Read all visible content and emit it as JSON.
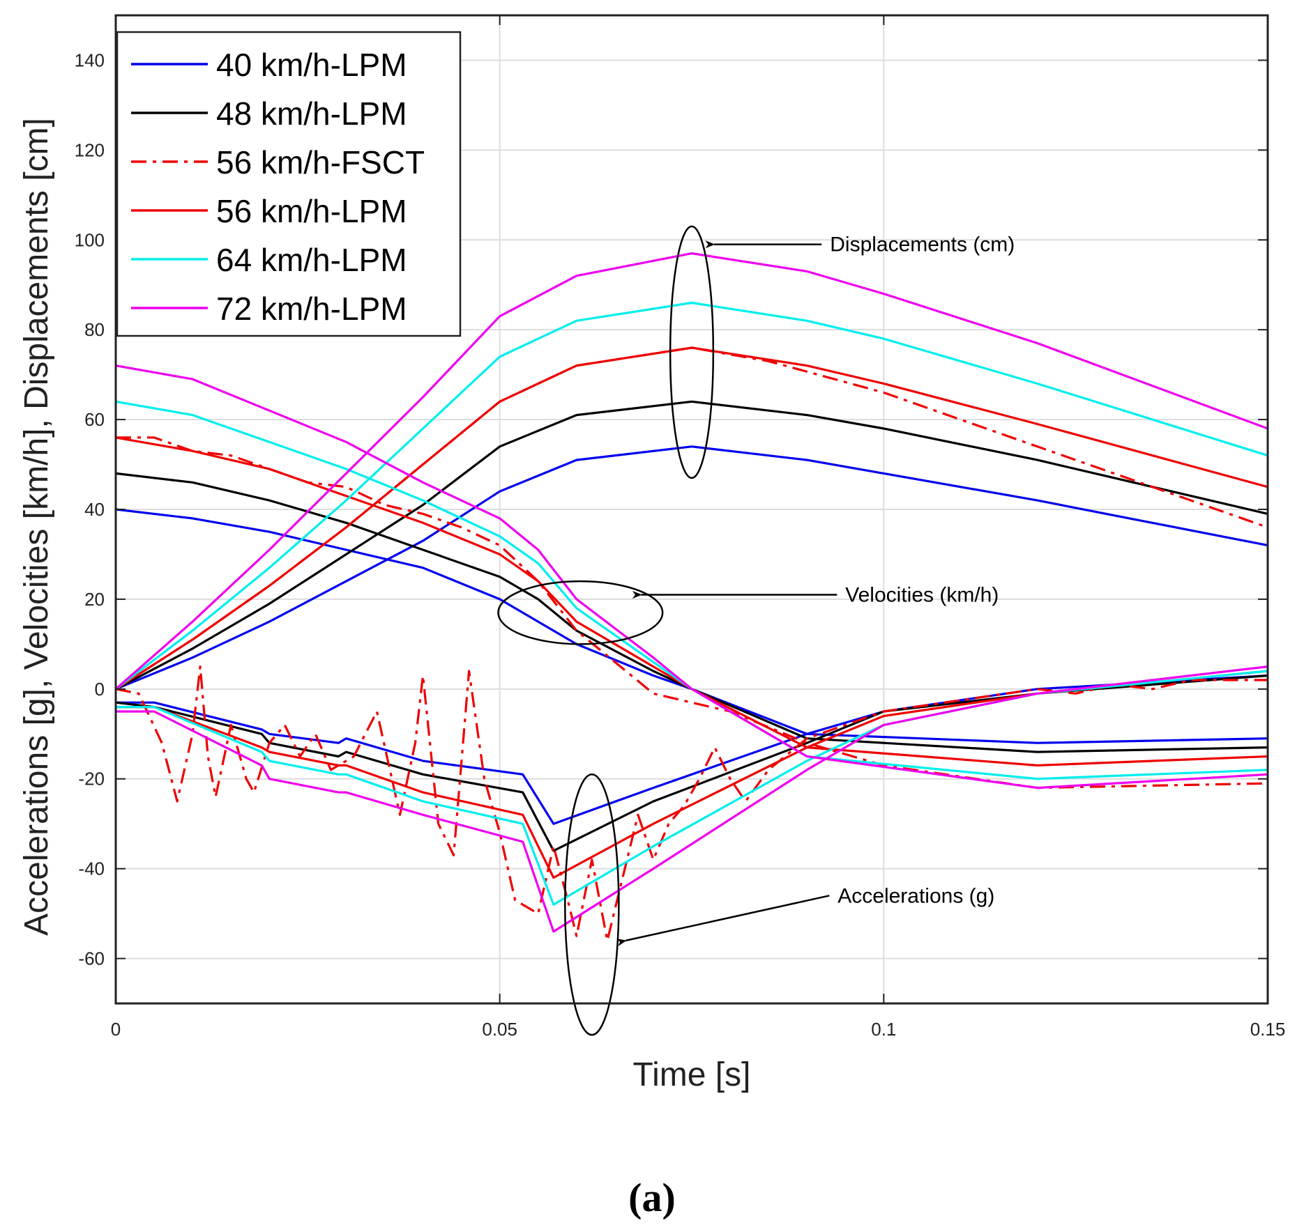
{
  "chart_data": {
    "type": "line",
    "title": "",
    "xlabel": "Time [s]",
    "ylabel": "Accelerations [g], Velocities [km/h], Displacements [cm]",
    "xlim": [
      0,
      0.15
    ],
    "ylim": [
      -70,
      150
    ],
    "xticks": [
      0,
      0.05,
      0.1,
      0.15
    ],
    "xtick_labels": [
      "0",
      "0.05",
      "0.1",
      "0.15"
    ],
    "yticks": [
      -60,
      -40,
      -20,
      0,
      20,
      40,
      60,
      80,
      100,
      120,
      140
    ],
    "ytick_labels": [
      "-60",
      "-40",
      "-20",
      "0",
      "20",
      "40",
      "60",
      "80",
      "100",
      "120",
      "140"
    ],
    "grid": true,
    "legend_position": "top-left",
    "caption": "(a)",
    "series": [
      {
        "name": "40 km/h-LPM",
        "color": "#0000ee",
        "style": "solid",
        "displacement": [
          [
            0,
            0
          ],
          [
            0.01,
            7
          ],
          [
            0.02,
            15
          ],
          [
            0.03,
            24
          ],
          [
            0.04,
            33
          ],
          [
            0.05,
            44
          ],
          [
            0.06,
            51
          ],
          [
            0.075,
            54
          ],
          [
            0.09,
            51
          ],
          [
            0.1,
            48
          ],
          [
            0.12,
            42
          ],
          [
            0.15,
            32
          ]
        ],
        "velocity": [
          [
            0,
            40
          ],
          [
            0.01,
            38
          ],
          [
            0.02,
            35
          ],
          [
            0.03,
            31
          ],
          [
            0.04,
            27
          ],
          [
            0.05,
            20
          ],
          [
            0.055,
            15
          ],
          [
            0.06,
            10
          ],
          [
            0.07,
            3
          ],
          [
            0.075,
            0
          ],
          [
            0.09,
            -10
          ],
          [
            0.12,
            -12
          ],
          [
            0.15,
            -11
          ]
        ],
        "acceleration": [
          [
            0,
            -3
          ],
          [
            0.005,
            -3
          ],
          [
            0.019,
            -9
          ],
          [
            0.02,
            -10
          ],
          [
            0.029,
            -12
          ],
          [
            0.03,
            -11
          ],
          [
            0.04,
            -16
          ],
          [
            0.053,
            -19
          ],
          [
            0.057,
            -30
          ],
          [
            0.07,
            -22
          ],
          [
            0.09,
            -10
          ],
          [
            0.1,
            -5
          ],
          [
            0.12,
            0
          ],
          [
            0.15,
            3
          ]
        ]
      },
      {
        "name": "48 km/h-LPM",
        "color": "#000000",
        "style": "solid",
        "displacement": [
          [
            0,
            0
          ],
          [
            0.01,
            9
          ],
          [
            0.02,
            19
          ],
          [
            0.03,
            30
          ],
          [
            0.04,
            41
          ],
          [
            0.05,
            54
          ],
          [
            0.06,
            61
          ],
          [
            0.075,
            64
          ],
          [
            0.09,
            61
          ],
          [
            0.1,
            58
          ],
          [
            0.12,
            51
          ],
          [
            0.15,
            39
          ]
        ],
        "velocity": [
          [
            0,
            48
          ],
          [
            0.01,
            46
          ],
          [
            0.02,
            42
          ],
          [
            0.03,
            37
          ],
          [
            0.04,
            31
          ],
          [
            0.05,
            25
          ],
          [
            0.055,
            20
          ],
          [
            0.06,
            13
          ],
          [
            0.07,
            4
          ],
          [
            0.075,
            0
          ],
          [
            0.09,
            -11
          ],
          [
            0.12,
            -14
          ],
          [
            0.15,
            -13
          ]
        ],
        "acceleration": [
          [
            0,
            -3
          ],
          [
            0.005,
            -4
          ],
          [
            0.019,
            -10
          ],
          [
            0.02,
            -12
          ],
          [
            0.029,
            -15
          ],
          [
            0.03,
            -14
          ],
          [
            0.04,
            -19
          ],
          [
            0.053,
            -23
          ],
          [
            0.057,
            -36
          ],
          [
            0.07,
            -25
          ],
          [
            0.09,
            -12
          ],
          [
            0.1,
            -5
          ],
          [
            0.12,
            -1
          ],
          [
            0.15,
            3
          ]
        ]
      },
      {
        "name": "56 km/h-FSCT",
        "color": "#ee0000",
        "style": "dashdot",
        "displacement": [
          [
            0,
            0
          ],
          [
            0.01,
            11
          ],
          [
            0.02,
            23
          ],
          [
            0.03,
            36
          ],
          [
            0.04,
            50
          ],
          [
            0.05,
            64
          ],
          [
            0.06,
            72
          ],
          [
            0.075,
            76
          ],
          [
            0.085,
            73
          ],
          [
            0.1,
            66
          ],
          [
            0.12,
            54
          ],
          [
            0.15,
            36
          ]
        ],
        "velocity": [
          [
            0,
            56
          ],
          [
            0.005,
            56
          ],
          [
            0.01,
            53
          ],
          [
            0.015,
            52
          ],
          [
            0.02,
            49
          ],
          [
            0.025,
            46
          ],
          [
            0.03,
            45
          ],
          [
            0.035,
            41
          ],
          [
            0.04,
            39
          ],
          [
            0.045,
            36
          ],
          [
            0.05,
            32
          ],
          [
            0.055,
            24
          ],
          [
            0.06,
            13
          ],
          [
            0.065,
            6
          ],
          [
            0.07,
            -1
          ],
          [
            0.075,
            -3
          ],
          [
            0.08,
            -5
          ],
          [
            0.09,
            -12
          ],
          [
            0.1,
            -17
          ],
          [
            0.12,
            -22
          ],
          [
            0.15,
            -21
          ]
        ],
        "acceleration": [
          [
            0,
            0
          ],
          [
            0.003,
            -1
          ],
          [
            0.006,
            -12
          ],
          [
            0.008,
            -25
          ],
          [
            0.01,
            -10
          ],
          [
            0.011,
            5
          ],
          [
            0.012,
            -15
          ],
          [
            0.013,
            -24
          ],
          [
            0.015,
            -8
          ],
          [
            0.017,
            -20
          ],
          [
            0.018,
            -23
          ],
          [
            0.02,
            -12
          ],
          [
            0.022,
            -8
          ],
          [
            0.024,
            -15
          ],
          [
            0.026,
            -10
          ],
          [
            0.028,
            -18
          ],
          [
            0.031,
            -15
          ],
          [
            0.034,
            -5
          ],
          [
            0.037,
            -28
          ],
          [
            0.039,
            -12
          ],
          [
            0.04,
            3
          ],
          [
            0.042,
            -30
          ],
          [
            0.044,
            -37
          ],
          [
            0.046,
            4
          ],
          [
            0.048,
            -20
          ],
          [
            0.05,
            -32
          ],
          [
            0.052,
            -47
          ],
          [
            0.055,
            -50
          ],
          [
            0.057,
            -35
          ],
          [
            0.059,
            -48
          ],
          [
            0.06,
            -55
          ],
          [
            0.062,
            -38
          ],
          [
            0.064,
            -56
          ],
          [
            0.066,
            -42
          ],
          [
            0.068,
            -28
          ],
          [
            0.07,
            -38
          ],
          [
            0.072,
            -30
          ],
          [
            0.074,
            -26
          ],
          [
            0.076,
            -20
          ],
          [
            0.078,
            -13
          ],
          [
            0.08,
            -20
          ],
          [
            0.082,
            -25
          ],
          [
            0.085,
            -18
          ],
          [
            0.09,
            -11
          ],
          [
            0.1,
            -5
          ],
          [
            0.12,
            0
          ],
          [
            0.125,
            -1
          ],
          [
            0.13,
            1
          ],
          [
            0.135,
            0
          ],
          [
            0.14,
            2
          ],
          [
            0.15,
            2
          ]
        ]
      },
      {
        "name": "56 km/h-LPM",
        "color": "#ee0000",
        "style": "solid",
        "displacement": [
          [
            0,
            0
          ],
          [
            0.01,
            11
          ],
          [
            0.02,
            23
          ],
          [
            0.03,
            36
          ],
          [
            0.04,
            50
          ],
          [
            0.05,
            64
          ],
          [
            0.06,
            72
          ],
          [
            0.075,
            76
          ],
          [
            0.09,
            72
          ],
          [
            0.1,
            68
          ],
          [
            0.12,
            59
          ],
          [
            0.15,
            45
          ]
        ],
        "velocity": [
          [
            0,
            56
          ],
          [
            0.01,
            53
          ],
          [
            0.02,
            49
          ],
          [
            0.03,
            43
          ],
          [
            0.04,
            37
          ],
          [
            0.05,
            30
          ],
          [
            0.055,
            24
          ],
          [
            0.06,
            15
          ],
          [
            0.07,
            5
          ],
          [
            0.075,
            0
          ],
          [
            0.09,
            -13
          ],
          [
            0.12,
            -17
          ],
          [
            0.15,
            -15
          ]
        ],
        "acceleration": [
          [
            0,
            -4
          ],
          [
            0.005,
            -4
          ],
          [
            0.019,
            -13
          ],
          [
            0.02,
            -14
          ],
          [
            0.029,
            -17
          ],
          [
            0.03,
            -17
          ],
          [
            0.04,
            -23
          ],
          [
            0.053,
            -28
          ],
          [
            0.057,
            -42
          ],
          [
            0.07,
            -30
          ],
          [
            0.09,
            -13
          ],
          [
            0.1,
            -6
          ],
          [
            0.12,
            -1
          ],
          [
            0.15,
            4
          ]
        ]
      },
      {
        "name": "64 km/h-LPM",
        "color": "#00eeee",
        "style": "solid",
        "displacement": [
          [
            0,
            0
          ],
          [
            0.01,
            13
          ],
          [
            0.02,
            27
          ],
          [
            0.03,
            42
          ],
          [
            0.04,
            58
          ],
          [
            0.05,
            74
          ],
          [
            0.06,
            82
          ],
          [
            0.075,
            86
          ],
          [
            0.09,
            82
          ],
          [
            0.1,
            78
          ],
          [
            0.12,
            68
          ],
          [
            0.15,
            52
          ]
        ],
        "velocity": [
          [
            0,
            64
          ],
          [
            0.01,
            61
          ],
          [
            0.02,
            55
          ],
          [
            0.03,
            49
          ],
          [
            0.04,
            42
          ],
          [
            0.05,
            34
          ],
          [
            0.055,
            28
          ],
          [
            0.06,
            18
          ],
          [
            0.07,
            6
          ],
          [
            0.075,
            0
          ],
          [
            0.09,
            -15
          ],
          [
            0.12,
            -20
          ],
          [
            0.15,
            -18
          ]
        ],
        "acceleration": [
          [
            0,
            -4
          ],
          [
            0.005,
            -4
          ],
          [
            0.019,
            -14
          ],
          [
            0.02,
            -16
          ],
          [
            0.029,
            -19
          ],
          [
            0.03,
            -19
          ],
          [
            0.04,
            -25
          ],
          [
            0.053,
            -30
          ],
          [
            0.057,
            -48
          ],
          [
            0.07,
            -35
          ],
          [
            0.09,
            -16
          ],
          [
            0.1,
            -8
          ],
          [
            0.12,
            -1
          ],
          [
            0.15,
            4
          ]
        ]
      },
      {
        "name": "72 km/h-LPM",
        "color": "#ee00ee",
        "style": "solid",
        "displacement": [
          [
            0,
            0
          ],
          [
            0.01,
            15
          ],
          [
            0.02,
            31
          ],
          [
            0.03,
            48
          ],
          [
            0.04,
            65
          ],
          [
            0.05,
            83
          ],
          [
            0.06,
            92
          ],
          [
            0.075,
            97
          ],
          [
            0.09,
            93
          ],
          [
            0.1,
            88
          ],
          [
            0.12,
            77
          ],
          [
            0.15,
            58
          ]
        ],
        "velocity": [
          [
            0,
            72
          ],
          [
            0.01,
            69
          ],
          [
            0.02,
            62
          ],
          [
            0.03,
            55
          ],
          [
            0.04,
            46
          ],
          [
            0.05,
            38
          ],
          [
            0.055,
            31
          ],
          [
            0.06,
            20
          ],
          [
            0.07,
            7
          ],
          [
            0.075,
            0
          ],
          [
            0.09,
            -15
          ],
          [
            0.12,
            -22
          ],
          [
            0.15,
            -19
          ]
        ],
        "acceleration": [
          [
            0,
            -5
          ],
          [
            0.005,
            -5
          ],
          [
            0.019,
            -17
          ],
          [
            0.02,
            -20
          ],
          [
            0.029,
            -23
          ],
          [
            0.03,
            -23
          ],
          [
            0.04,
            -28
          ],
          [
            0.053,
            -34
          ],
          [
            0.057,
            -54
          ],
          [
            0.07,
            -40
          ],
          [
            0.09,
            -18
          ],
          [
            0.1,
            -8
          ],
          [
            0.12,
            -1
          ],
          [
            0.15,
            5
          ]
        ]
      }
    ],
    "annotations": [
      {
        "label": "Displacements (cm)",
        "ellipse_center": [
          0.075,
          75
        ],
        "ellipse_x_radius": 0.0028,
        "ellipse_y_radius": 28,
        "arrow_tip": [
          0.077,
          99
        ],
        "text_anchor": [
          0.093,
          99
        ]
      },
      {
        "label": "Velocities (km/h)",
        "ellipse_center": [
          0.0605,
          17
        ],
        "ellipse_x_radius": 0.0107,
        "ellipse_y_radius": 7,
        "arrow_tip": [
          0.0675,
          21
        ],
        "text_anchor": [
          0.095,
          21
        ]
      },
      {
        "label": "Accelerations (g)",
        "ellipse_center": [
          0.062,
          -48
        ],
        "ellipse_x_radius": 0.0035,
        "ellipse_y_radius": 29,
        "arrow_tip": [
          0.0655,
          -56
        ],
        "text_anchor": [
          0.094,
          -46
        ]
      }
    ]
  }
}
